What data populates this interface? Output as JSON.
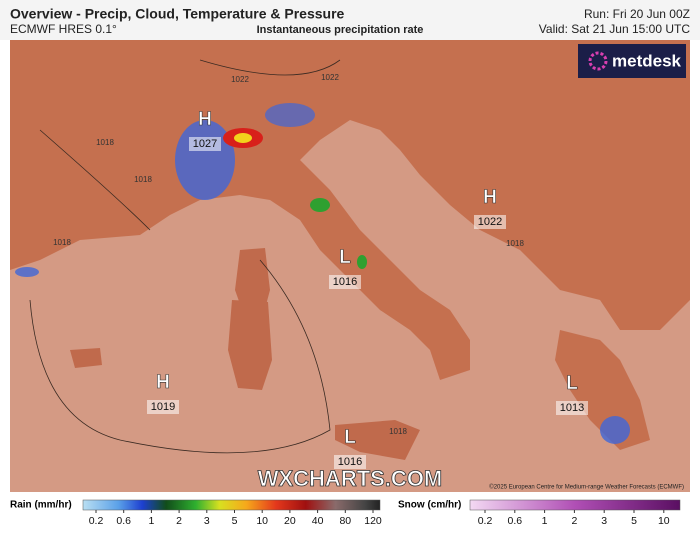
{
  "header": {
    "title": "Overview - Precip, Cloud, Temperature & Pressure",
    "model": "ECMWF HRES 0.1°",
    "product": "Instantaneous precipitation rate",
    "run": "Run: Fri 20 Jun 00Z",
    "valid": "Valid: Sat 21 Jun 15:00 UTC",
    "logo": "metdesk"
  },
  "map": {
    "centers": [
      {
        "kind": "H",
        "pressure": 1027
      },
      {
        "kind": "H",
        "pressure": 1022
      },
      {
        "kind": "L",
        "pressure": 1016
      },
      {
        "kind": "H",
        "pressure": 1019
      },
      {
        "kind": "L",
        "pressure": 1016
      },
      {
        "kind": "L",
        "pressure": 1013
      }
    ],
    "isobar_labels": [
      1022,
      1022,
      1018,
      1018,
      1018,
      1018,
      1018
    ],
    "watermark": "WXCHARTS.COM",
    "copyright": "©2025 European Centre for Medium-range Weather Forecasts (ECMWF)"
  },
  "legend": {
    "rain": {
      "title": "Rain (mm/hr)",
      "ticks": [
        0.2,
        0.6,
        1,
        2,
        3,
        5,
        10,
        20,
        40,
        80,
        120
      ]
    },
    "snow": {
      "title": "Snow (cm/hr)",
      "ticks": [
        0.2,
        0.6,
        1,
        2,
        3,
        5,
        10
      ]
    }
  }
}
